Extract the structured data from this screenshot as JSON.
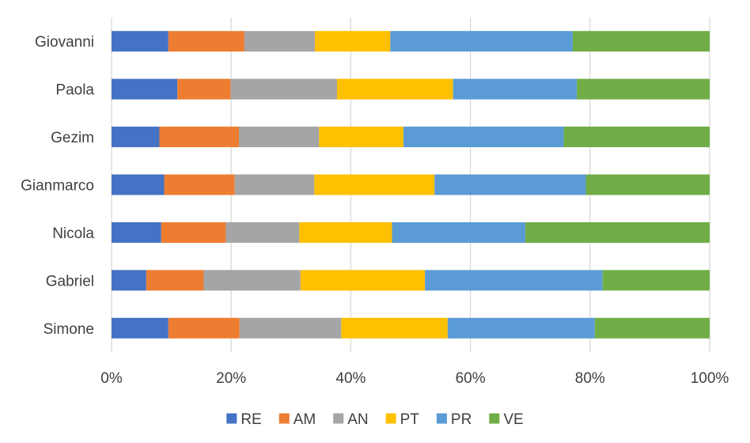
{
  "chart_data": {
    "type": "bar",
    "orientation": "horizontal",
    "stacked": "percent",
    "categories": [
      "Giovanni",
      "Paola",
      "Gezim",
      "Gianmarco",
      "Nicola",
      "Gabriel",
      "Simone"
    ],
    "series": [
      {
        "name": "RE",
        "color": "#4472C4",
        "values": [
          9.5,
          11.0,
          8.0,
          8.8,
          8.3,
          5.8,
          9.5
        ]
      },
      {
        "name": "AM",
        "color": "#ED7D31",
        "values": [
          12.7,
          8.9,
          13.3,
          11.8,
          10.8,
          9.6,
          11.9
        ]
      },
      {
        "name": "AN",
        "color": "#A5A5A5",
        "values": [
          11.8,
          17.8,
          13.4,
          13.3,
          12.3,
          16.2,
          17.0
        ]
      },
      {
        "name": "PT",
        "color": "#FFC000",
        "values": [
          12.6,
          19.4,
          14.1,
          20.1,
          15.5,
          20.8,
          17.8
        ]
      },
      {
        "name": "PR",
        "color": "#5B9BD5",
        "values": [
          30.5,
          20.7,
          26.8,
          25.3,
          22.3,
          29.7,
          24.6
        ]
      },
      {
        "name": "VE",
        "color": "#70AD47",
        "values": [
          22.9,
          22.2,
          24.4,
          20.7,
          30.8,
          17.9,
          19.2
        ]
      }
    ],
    "x_ticks": [
      "0%",
      "20%",
      "40%",
      "60%",
      "80%",
      "100%"
    ],
    "xlim": [
      0,
      100
    ],
    "grid": "vertical",
    "legend": "bottom",
    "title": "",
    "xlabel": "",
    "ylabel": ""
  }
}
